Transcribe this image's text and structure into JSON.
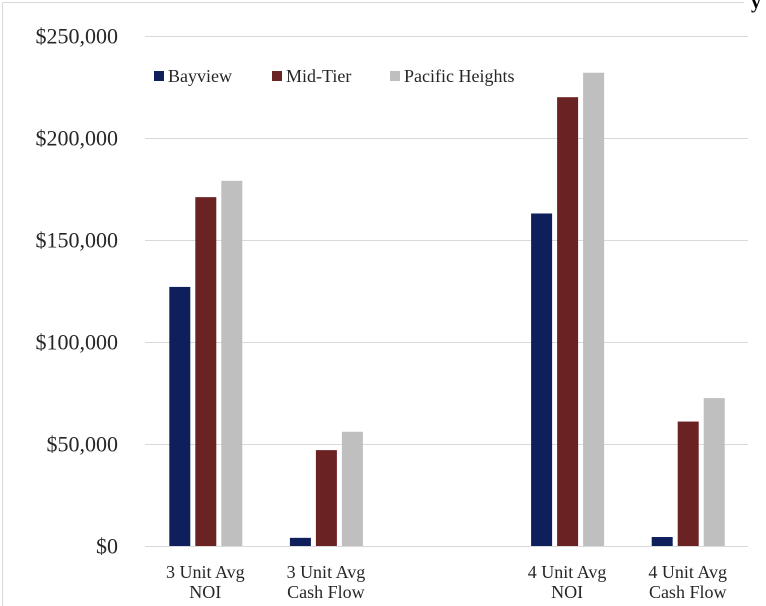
{
  "clipped_title_fragment": "y",
  "chart_data": {
    "type": "bar",
    "categories": [
      "3 Unit Avg\nNOI",
      "3 Unit Avg\nCash Flow",
      "4 Unit Avg\nNOI",
      "4 Unit Avg\nCash Flow"
    ],
    "series": [
      {
        "name": "Bayview",
        "color": "#0f1f5c",
        "values": [
          127000,
          4000,
          163000,
          4400
        ]
      },
      {
        "name": "Mid-Tier",
        "color": "#6b2222",
        "values": [
          171000,
          47000,
          220000,
          61000
        ]
      },
      {
        "name": "Pacific Heights",
        "color": "#bfbfbf",
        "values": [
          179000,
          56000,
          232000,
          72500
        ]
      }
    ],
    "ylim": [
      0,
      250000
    ],
    "yticks": [
      0,
      50000,
      100000,
      150000,
      200000,
      250000
    ],
    "ytick_labels": [
      "$0",
      "$50,000",
      "$100,000",
      "$150,000",
      "$200,000",
      "$250,000"
    ],
    "grid": true,
    "legend": "top-left",
    "gridline_color": "#d9d9d9"
  }
}
